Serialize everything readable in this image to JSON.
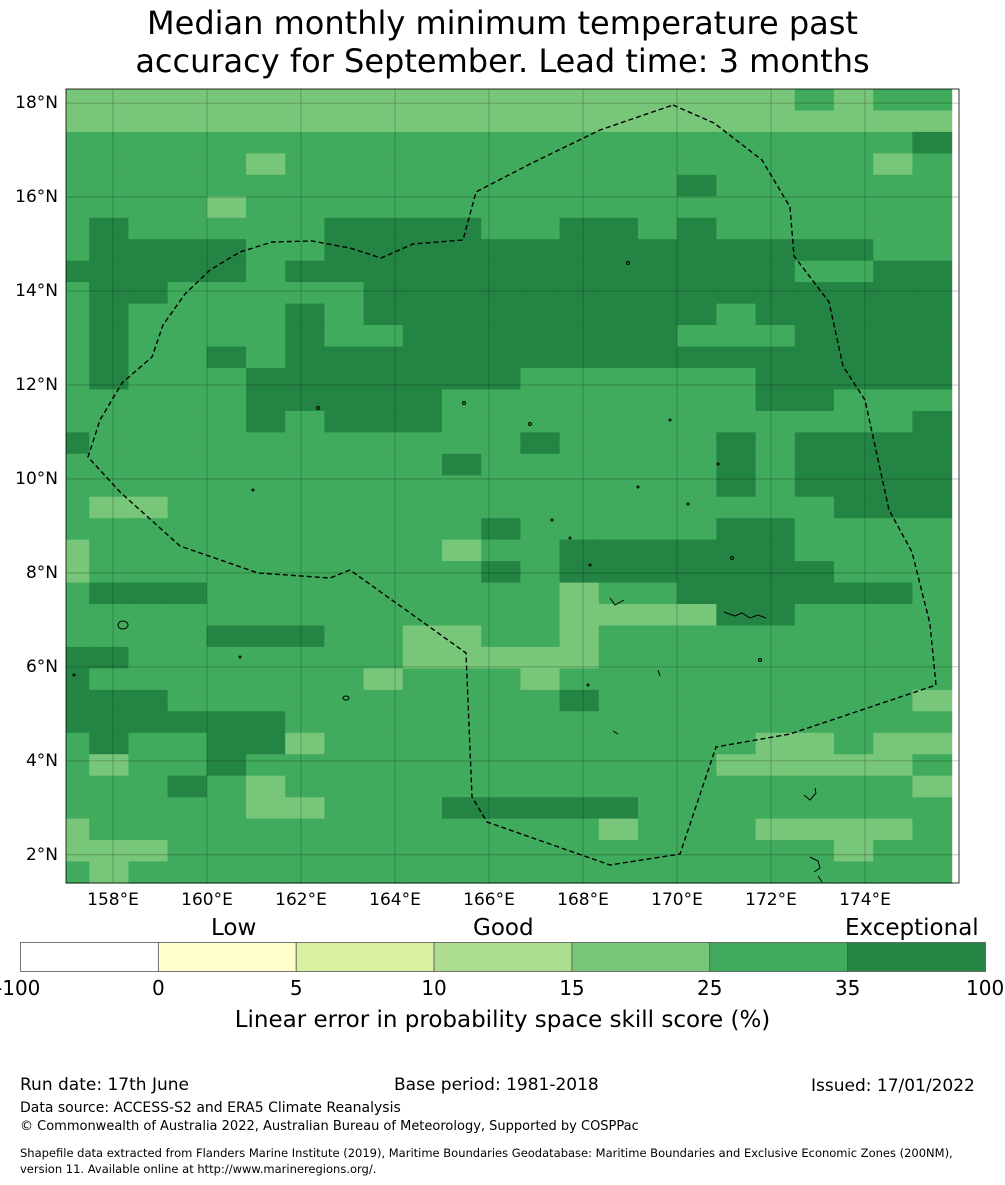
{
  "title_line1": "Median monthly minimum temperature past",
  "title_line2": "accuracy for September. Lead time: 3 months",
  "map": {
    "lon_min": 157,
    "lon_max": 176,
    "lat_min": 1.4,
    "lat_max": 18.3,
    "lat_ticks": [
      "18°N",
      "16°N",
      "14°N",
      "12°N",
      "10°N",
      "8°N",
      "6°N",
      "4°N",
      "2°N"
    ],
    "lon_ticks": [
      "158°E",
      "160°E",
      "162°E",
      "164°E",
      "166°E",
      "168°E",
      "170°E",
      "172°E",
      "174°E"
    ],
    "grid_rows": [
      "33333333333333333334344",
      "33333333333333333333333",
      "44444444444444444444445",
      "44444344444444444444434",
      "44444444444444445444444",
      "44443444444444444444444",
      "45444445555445545444444",
      "45555445555555555555544",
      "55555455555555555554455",
      "45544444555555555555555",
      "45444454555555555455555",
      "45444454455555554445555",
      "45445455555555555555555",
      "45444555555544444455555",
      "44444555554444444455444",
      "44444545554444444444445",
      "54444444444454444545555",
      "44444444445444444545555",
      "44444444444444444545555",
      "43344444444444444444555",
      "44444444444544444554444",
      "34444444443445555554444",
      "34444444444545555555444",
      "45554444444443445555554",
      "44444444444443333554444",
      "44445554433443444444444",
      "55444444433333444444444",
      "54444444344434444444444",
      "55544444444445444444443",
      "55555544444444444444444",
      "45445534444444444433433",
      "43445444444444444333334",
      "44454344444444444444443",
      "44444334445555544444444",
      "34444444444444344433334",
      "33344444444444444444344",
      "43444444444444444444444"
    ],
    "colors": {
      "3": "#78c679",
      "4": "#41ab5d",
      "5": "#238443"
    }
  },
  "colorbar": {
    "categories": [
      "Low",
      "Good",
      "Exceptional"
    ],
    "ticks": [
      "-100",
      "0",
      "5",
      "10",
      "15",
      "25",
      "35",
      "100"
    ],
    "colors": [
      "#ffffff",
      "#ffffcc",
      "#d9f0a3",
      "#addd8e",
      "#78c679",
      "#41ab5d",
      "#238443"
    ],
    "label": "Linear error in probability space skill score (%)"
  },
  "footer": {
    "run_date": "Run date: 17th June",
    "base_period": "Base period: 1981-2018",
    "issued": "Issued: 17/01/2022",
    "data_source": "Data source: ACCESS-S2 and ERA5 Climate Reanalysis",
    "copyright": "© Commonwealth of Australia 2022, Australian Bureau of Meteorology, Supported by COSPPac",
    "shapefile_line1": "Shapefile data extracted from Flanders Marine Institute (2019), Maritime Boundaries Geodatabase: Maritime Boundaries and Exclusive Economic Zones (200NM),",
    "shapefile_line2": "version 11. Available online at http://www.marineregions.org/."
  }
}
